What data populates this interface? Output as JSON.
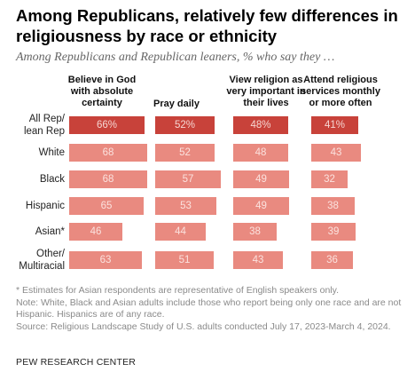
{
  "title": "Among Republicans, relatively few differences in religiousness by race or ethnicity",
  "subtitle": "Among Republicans and Republican leaners, % who say they …",
  "notes": [
    "* Estimates for Asian respondents are representative of English speakers only.",
    "Note: White, Black and Asian adults include those who report being only one race and are not Hispanic. Hispanics are of any race.",
    "Source: Religious Landscape Study of U.S. adults conducted July 17, 2023-March 4, 2024."
  ],
  "source_org": "PEW RESEARCH CENTER",
  "colors": {
    "highlight": "#c8423a",
    "bar": "#e98a80",
    "highlight_text": "#f6d6d2",
    "bar_text": "#fbe2de"
  },
  "chart_data": {
    "type": "bar",
    "categories": [
      "All Rep/ lean Rep",
      "White",
      "Black",
      "Hispanic",
      "Asian*",
      "Other/ Multiracial"
    ],
    "series": [
      {
        "name": "Believe in God with absolute certainty",
        "values": [
          66,
          68,
          68,
          65,
          46,
          63
        ]
      },
      {
        "name": "Pray daily",
        "values": [
          52,
          52,
          57,
          53,
          44,
          51
        ]
      },
      {
        "name": "View religion as very important in their lives",
        "values": [
          48,
          48,
          49,
          49,
          38,
          43
        ]
      },
      {
        "name": "Attend religious services monthly or more often",
        "values": [
          41,
          43,
          32,
          38,
          39,
          36
        ]
      }
    ],
    "value_labels": [
      [
        "66%",
        "68",
        "68",
        "65",
        "46",
        "63"
      ],
      [
        "52%",
        "52",
        "57",
        "53",
        "44",
        "51"
      ],
      [
        "48%",
        "48",
        "49",
        "49",
        "38",
        "43"
      ],
      [
        "41%",
        "43",
        "32",
        "38",
        "39",
        "36"
      ]
    ],
    "highlight_category_index": 0,
    "ylim": [
      0,
      100
    ]
  }
}
